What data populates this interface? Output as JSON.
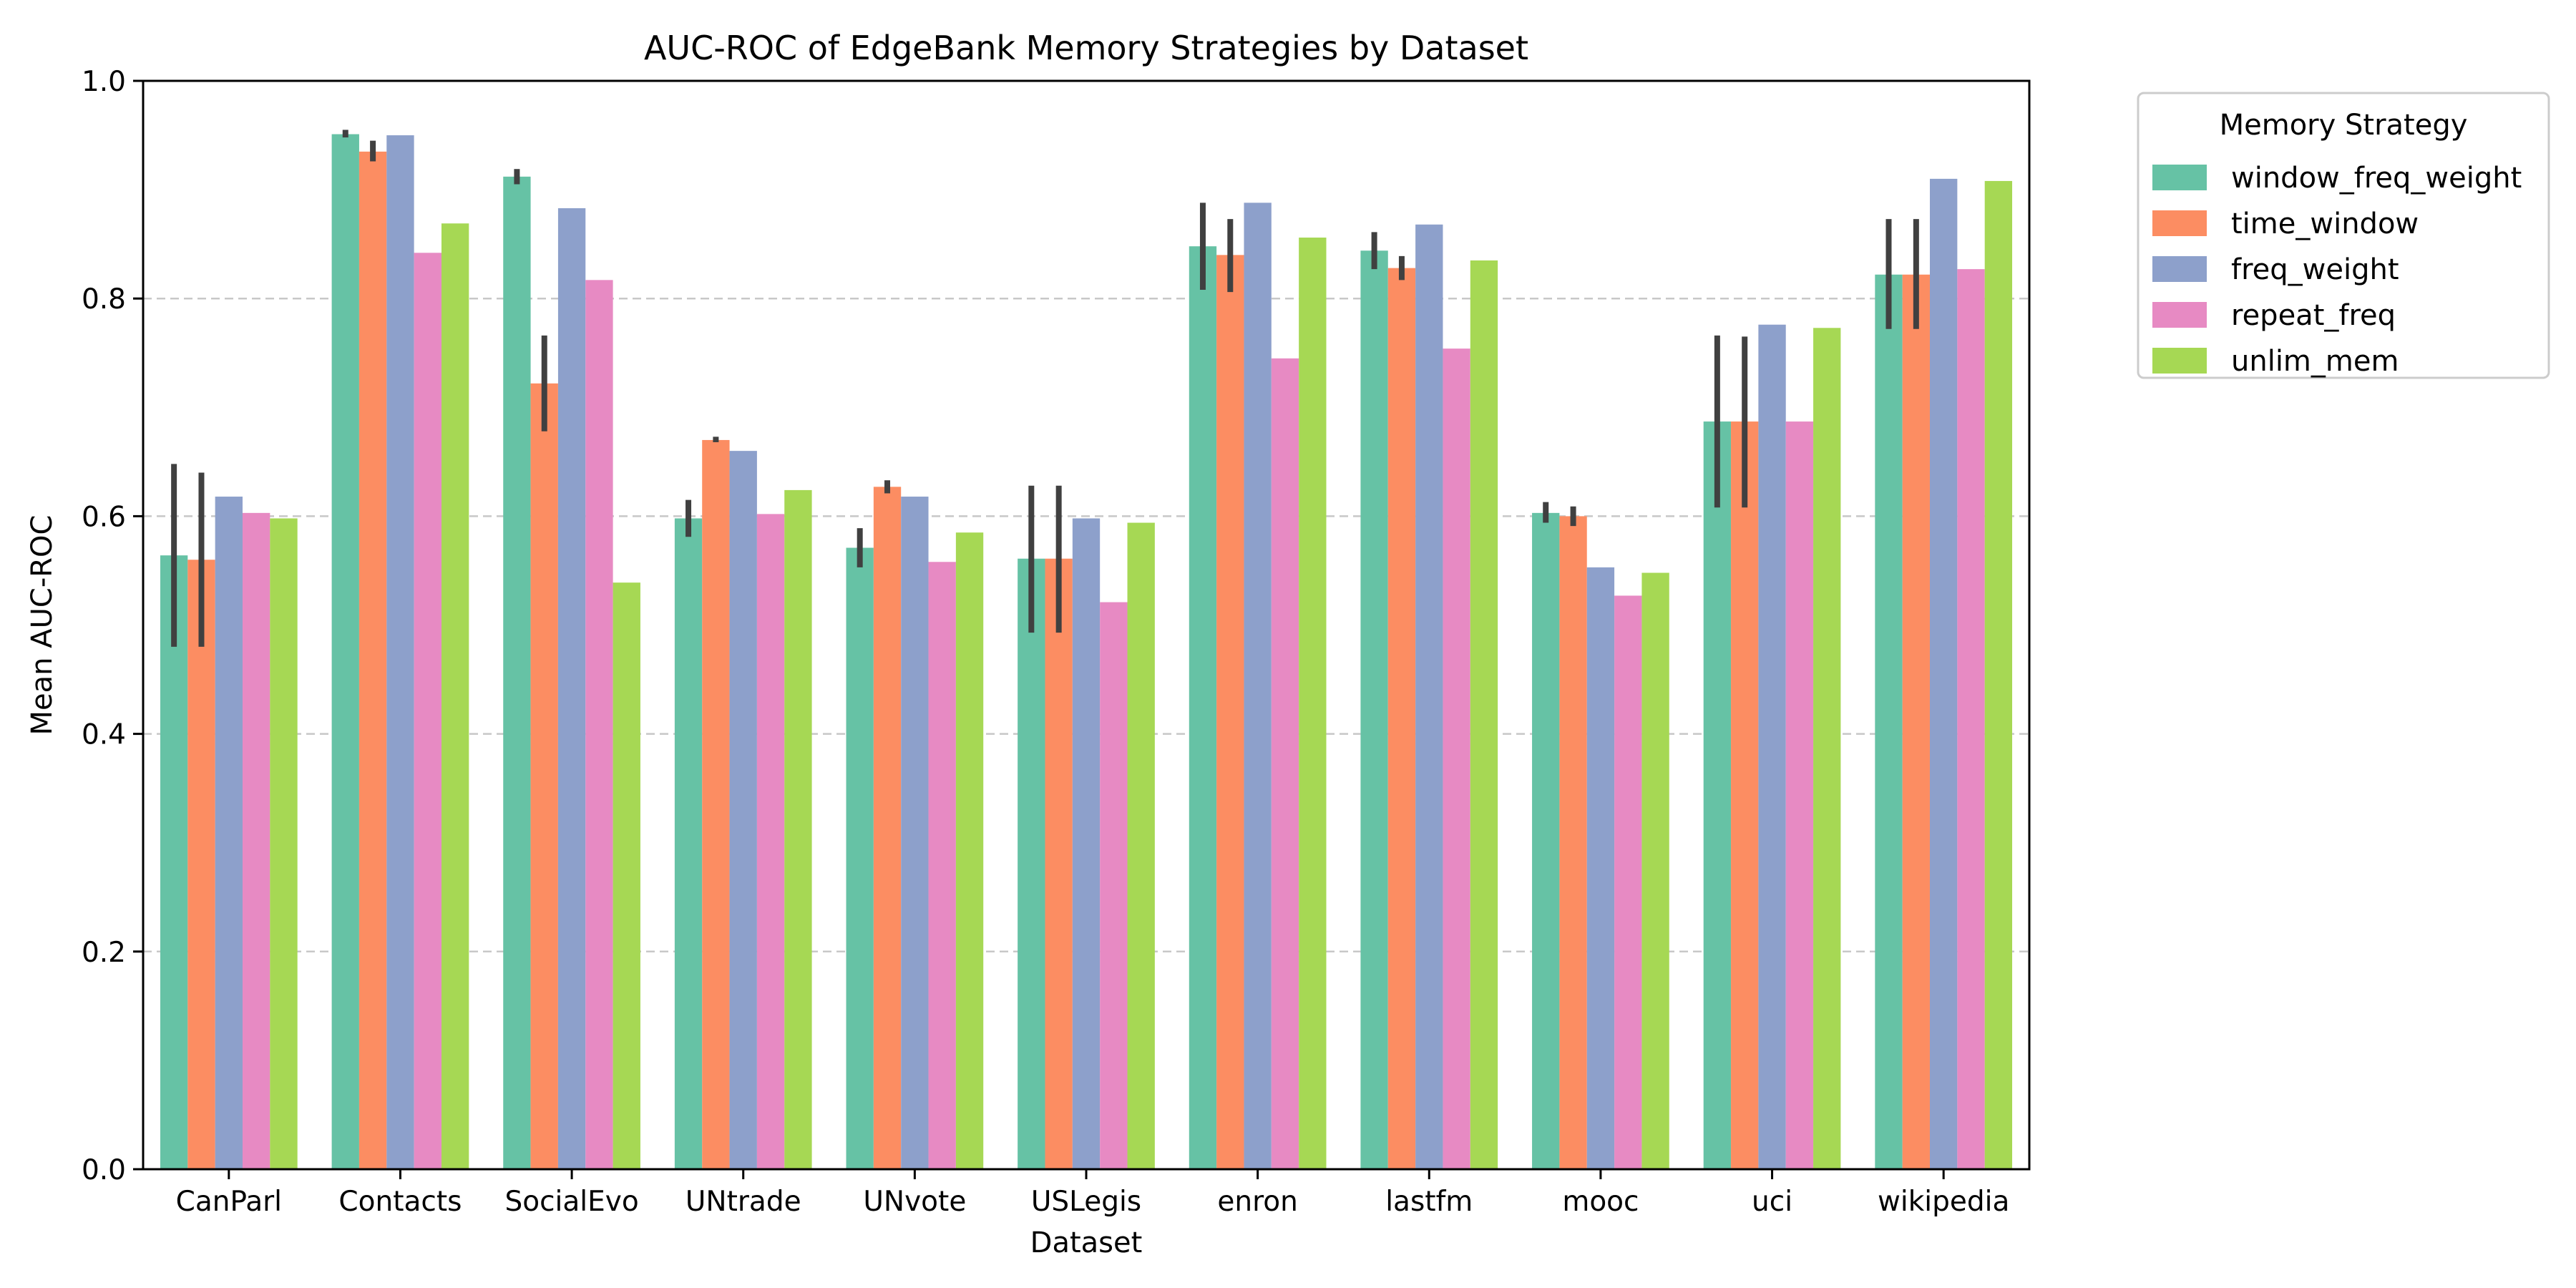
{
  "chart_data": {
    "type": "bar",
    "title": "AUC-ROC of EdgeBank Memory Strategies by Dataset",
    "xlabel": "Dataset",
    "ylabel": "Mean AUC-ROC",
    "ylim": [
      0,
      1.0
    ],
    "yticks": [
      "0.0",
      "0.2",
      "0.4",
      "0.6",
      "0.8",
      "1.0"
    ],
    "grid": "y-dashed",
    "legend": {
      "title": "Memory Strategy",
      "placement": "outside-top-right"
    },
    "categories": [
      "CanParl",
      "Contacts",
      "SocialEvo",
      "UNtrade",
      "UNvote",
      "USLegis",
      "enron",
      "lastfm",
      "mooc",
      "uci",
      "wikipedia"
    ],
    "series": [
      {
        "name": "window_freq_weight",
        "color": "#66c2a5",
        "values": [
          0.564,
          0.951,
          0.912,
          0.598,
          0.571,
          0.561,
          0.848,
          0.844,
          0.603,
          0.687,
          0.822
        ],
        "error": [
          [
            0.48,
            0.648
          ],
          [
            0.948,
            0.955
          ],
          [
            0.905,
            0.919
          ],
          [
            0.581,
            0.615
          ],
          [
            0.553,
            0.589
          ],
          [
            0.493,
            0.628
          ],
          [
            0.808,
            0.888
          ],
          [
            0.827,
            0.861
          ],
          [
            0.594,
            0.613
          ],
          [
            0.608,
            0.766
          ],
          [
            0.772,
            0.873
          ]
        ]
      },
      {
        "name": "time_window",
        "color": "#fc8d62",
        "values": [
          0.56,
          0.935,
          0.722,
          0.67,
          0.627,
          0.561,
          0.84,
          0.828,
          0.6,
          0.687,
          0.822
        ],
        "error": [
          [
            0.48,
            0.64
          ],
          [
            0.926,
            0.945
          ],
          [
            0.678,
            0.766
          ],
          [
            0.668,
            0.673
          ],
          [
            0.621,
            0.633
          ],
          [
            0.493,
            0.628
          ],
          [
            0.806,
            0.873
          ],
          [
            0.817,
            0.839
          ],
          [
            0.591,
            0.609
          ],
          [
            0.608,
            0.765
          ],
          [
            0.772,
            0.873
          ]
        ]
      },
      {
        "name": "freq_weight",
        "color": "#8da0cb",
        "values": [
          0.618,
          0.95,
          0.883,
          0.66,
          0.618,
          0.598,
          0.888,
          0.868,
          0.553,
          0.776,
          0.91
        ],
        "error": null
      },
      {
        "name": "repeat_freq",
        "color": "#e78ac3",
        "values": [
          0.603,
          0.842,
          0.817,
          0.602,
          0.558,
          0.521,
          0.745,
          0.754,
          0.527,
          0.687,
          0.827
        ],
        "error": null
      },
      {
        "name": "unlim_mem",
        "color": "#a6d854",
        "values": [
          0.598,
          0.869,
          0.539,
          0.624,
          0.585,
          0.594,
          0.856,
          0.835,
          0.548,
          0.773,
          0.908
        ],
        "error": null
      }
    ]
  }
}
